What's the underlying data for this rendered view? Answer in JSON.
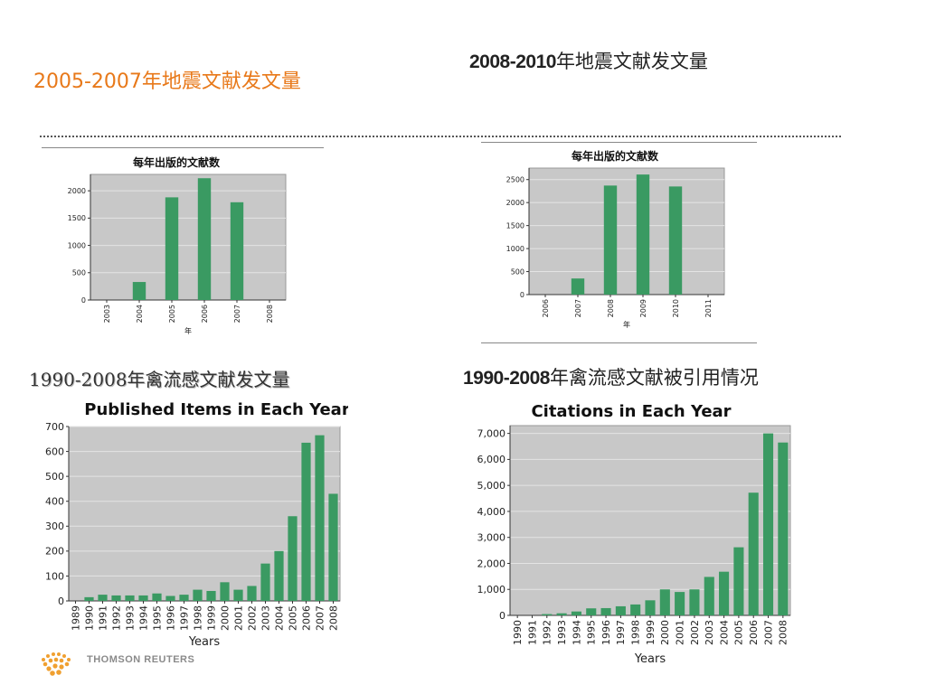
{
  "headings": {
    "top_left": "2005-2007年地震文献发文量",
    "top_right_year": "2008-2010",
    "top_right_rest": "年地震文献发文量",
    "bottom_left": "1990-2008年禽流感文献发文量",
    "bottom_right_year": "1990-2008",
    "bottom_right_rest": "年禽流感文献被引用情况"
  },
  "logo_text": "THOMSON REUTERS",
  "colors": {
    "bar": "#3a9a62",
    "plot_bg": "#c8c8c8",
    "accent": "#e8791a"
  },
  "chart_data": [
    {
      "type": "bar",
      "title": "每年出版的文献数",
      "xlabel": "年",
      "ylabel": "",
      "categories": [
        "2003",
        "2004",
        "2005",
        "2006",
        "2007",
        "2008"
      ],
      "values": [
        0,
        330,
        1880,
        2230,
        1790,
        0
      ],
      "ylim": [
        0,
        2300
      ],
      "yticks": [
        0,
        500,
        1000,
        1500,
        2000
      ],
      "grid": true
    },
    {
      "type": "bar",
      "title": "每年出版的文献数",
      "xlabel": "年",
      "ylabel": "",
      "categories": [
        "2006",
        "2007",
        "2008",
        "2009",
        "2010",
        "2011"
      ],
      "values": [
        0,
        350,
        2370,
        2610,
        2350,
        0
      ],
      "ylim": [
        0,
        2750
      ],
      "yticks": [
        0,
        500,
        1000,
        1500,
        2000,
        2500
      ],
      "grid": true
    },
    {
      "type": "bar",
      "title": "Published Items in Each Year",
      "xlabel": "Years",
      "ylabel": "",
      "categories": [
        "1989",
        "1990",
        "1991",
        "1992",
        "1993",
        "1994",
        "1995",
        "1996",
        "1997",
        "1998",
        "1999",
        "2000",
        "2001",
        "2002",
        "2003",
        "2004",
        "2005",
        "2006",
        "2007",
        "2008"
      ],
      "values": [
        0,
        15,
        25,
        22,
        22,
        22,
        30,
        20,
        25,
        45,
        40,
        75,
        45,
        60,
        150,
        200,
        340,
        635,
        665,
        430
      ],
      "ylim": [
        0,
        700
      ],
      "yticks": [
        0,
        100,
        200,
        300,
        400,
        500,
        600,
        700
      ],
      "grid": true
    },
    {
      "type": "bar",
      "title": "Citations in Each Year",
      "xlabel": "Years",
      "ylabel": "",
      "categories": [
        "1990",
        "1991",
        "1992",
        "1993",
        "1994",
        "1995",
        "1996",
        "1997",
        "1998",
        "1999",
        "2000",
        "2001",
        "2002",
        "2003",
        "2004",
        "2005",
        "2006",
        "2007",
        "2008"
      ],
      "values": [
        0,
        0,
        50,
        80,
        150,
        270,
        280,
        350,
        420,
        580,
        1000,
        900,
        1000,
        1480,
        1680,
        2620,
        4720,
        7000,
        6650
      ],
      "ylim": [
        0,
        7300
      ],
      "yticks": [
        0,
        1000,
        2000,
        3000,
        4000,
        5000,
        6000,
        7000
      ],
      "ytick_labels": [
        "0",
        "1,000",
        "2,000",
        "3,000",
        "4,000",
        "5,000",
        "6,000",
        "7,000"
      ],
      "grid": true
    }
  ]
}
